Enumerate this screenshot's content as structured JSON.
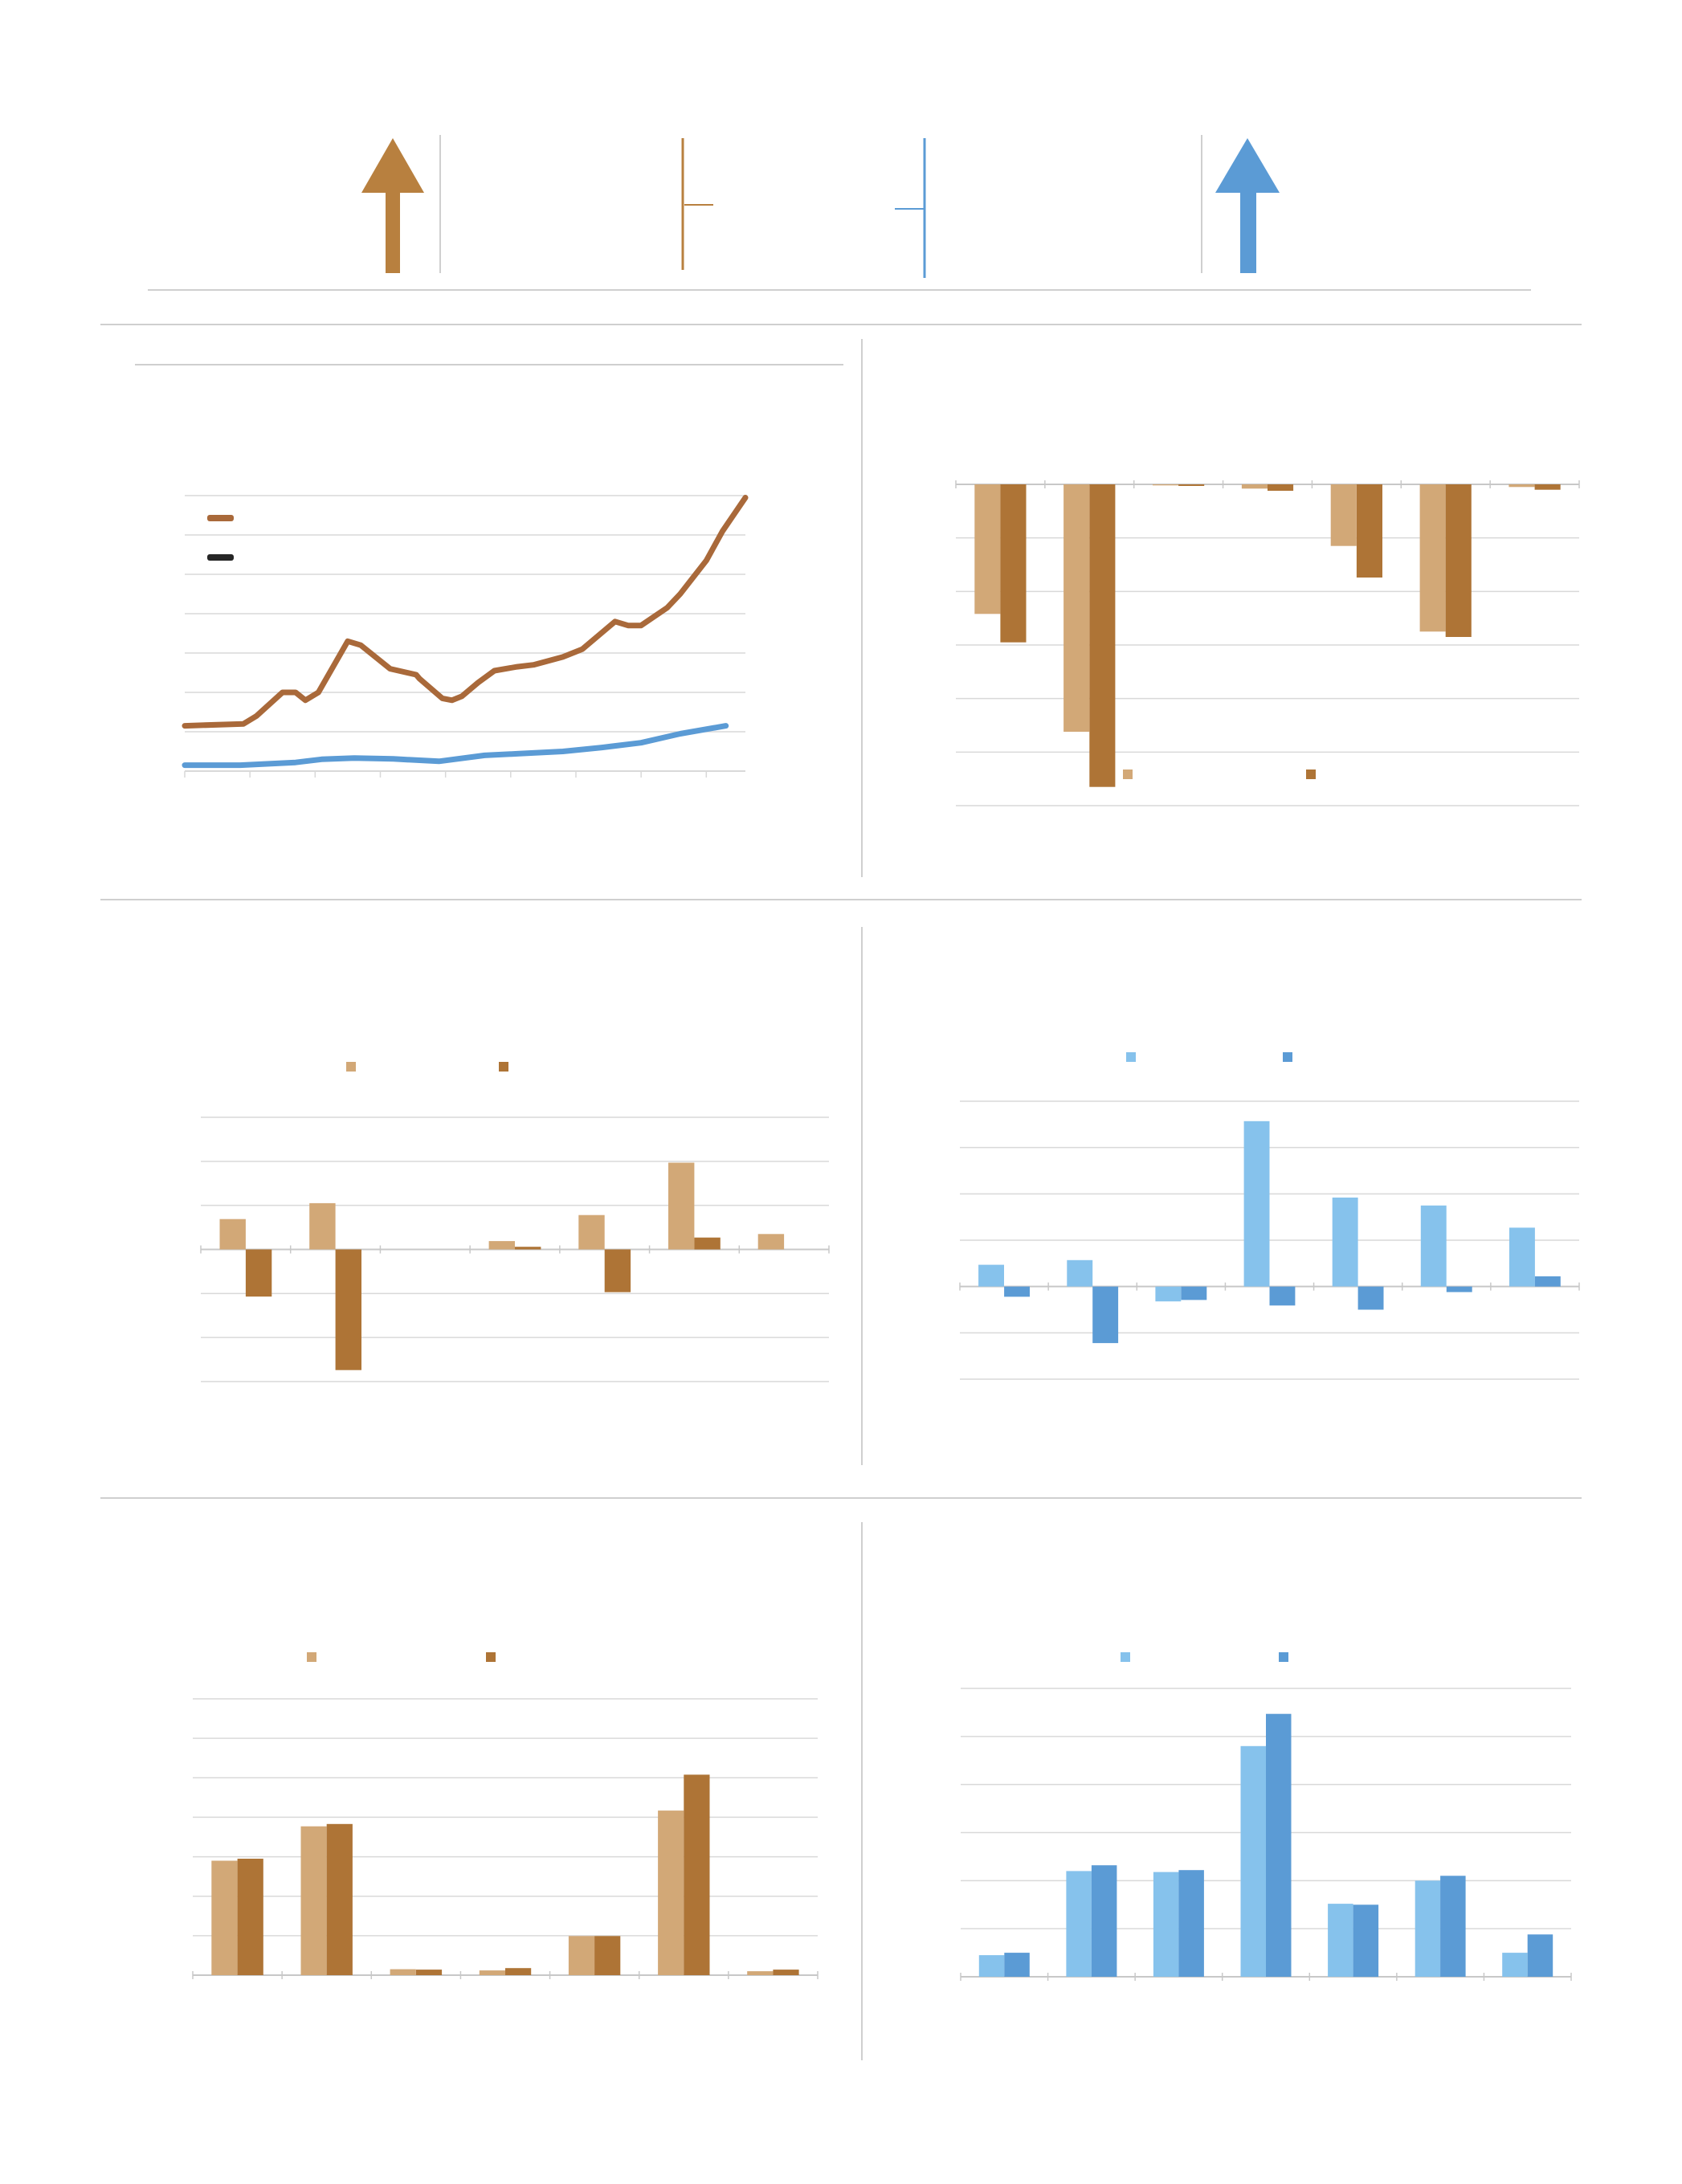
{
  "colors": {
    "tan_light": "#D2A877",
    "tan_dark": "#AE7436",
    "brown_line": "#A9693A",
    "arrow_brown": "#B8803F",
    "blue_light": "#86C2EC",
    "blue_dark": "#5B9BD5",
    "arrow_blue": "#5B9BD5",
    "dark_legend": "#262626",
    "grid": "#d9d9d9",
    "separator": "#cfcfcf"
  },
  "header": {
    "indicators": [
      {
        "type": "arrow",
        "direction": "up",
        "color": "arrow_brown"
      },
      {
        "type": "marker",
        "color": "arrow_brown"
      },
      {
        "type": "marker",
        "color": "arrow_blue"
      },
      {
        "type": "arrow",
        "direction": "up",
        "color": "arrow_blue"
      }
    ]
  },
  "chart_data": [
    {
      "id": "line-chart",
      "type": "line",
      "title": "",
      "xlabel": "",
      "ylabel": "",
      "x": [
        0,
        1,
        2,
        3,
        4,
        5,
        6,
        7,
        8
      ],
      "grid": true,
      "legend": {
        "position": "top-left",
        "entries": [
          {
            "color": "brown_line"
          },
          {
            "color": "dark_legend"
          }
        ]
      },
      "ylim": [
        0,
        7
      ],
      "series": [
        {
          "color": "brown_line",
          "points": [
            [
              0,
              1.15
            ],
            [
              0.9,
              1.2
            ],
            [
              1.1,
              1.4
            ],
            [
              1.5,
              2.0
            ],
            [
              1.7,
              2.0
            ],
            [
              1.85,
              1.8
            ],
            [
              2.05,
              2.0
            ],
            [
              2.5,
              3.3
            ],
            [
              2.7,
              3.2
            ],
            [
              3.15,
              2.6
            ],
            [
              3.55,
              2.45
            ],
            [
              3.6,
              2.35
            ],
            [
              3.95,
              1.85
            ],
            [
              4.1,
              1.8
            ],
            [
              4.25,
              1.9
            ],
            [
              4.5,
              2.25
            ],
            [
              4.75,
              2.55
            ],
            [
              5.1,
              2.65
            ],
            [
              5.35,
              2.7
            ],
            [
              5.8,
              2.9
            ],
            [
              6.1,
              3.1
            ],
            [
              6.6,
              3.8
            ],
            [
              6.8,
              3.7
            ],
            [
              7.0,
              3.7
            ],
            [
              7.4,
              4.15
            ],
            [
              7.6,
              4.5
            ],
            [
              8.0,
              5.35
            ],
            [
              8.25,
              6.1
            ],
            [
              8.6,
              6.95
            ]
          ]
        },
        {
          "color": "blue_dark",
          "points": [
            [
              0,
              0.15
            ],
            [
              0.85,
              0.15
            ],
            [
              1.7,
              0.22
            ],
            [
              2.1,
              0.3
            ],
            [
              2.6,
              0.33
            ],
            [
              3.2,
              0.31
            ],
            [
              3.9,
              0.25
            ],
            [
              4.6,
              0.4
            ],
            [
              5.1,
              0.44
            ],
            [
              5.8,
              0.5
            ],
            [
              6.4,
              0.6
            ],
            [
              7.0,
              0.72
            ],
            [
              7.6,
              0.95
            ],
            [
              8.3,
              1.15
            ]
          ]
        }
      ]
    },
    {
      "id": "bar-chart-top-right",
      "type": "bar",
      "title": "",
      "xlabel": "",
      "ylabel": "",
      "categories": [
        "",
        "",
        "",
        "",
        "",
        "",
        ""
      ],
      "ylim": [
        -6,
        0
      ],
      "grid": true,
      "legend": {
        "position": "bottom-center",
        "entries": [
          {
            "color": "tan_light"
          },
          {
            "color": "tan_dark"
          }
        ]
      },
      "series": [
        {
          "color": "tan_light",
          "values": [
            -2.42,
            -4.62,
            -0.02,
            -0.08,
            -1.15,
            -2.75,
            -0.05
          ]
        },
        {
          "color": "tan_dark",
          "values": [
            -2.95,
            -5.65,
            -0.03,
            -0.12,
            -1.74,
            -2.85,
            -0.1
          ]
        }
      ]
    },
    {
      "id": "bar-chart-middle-left",
      "type": "bar",
      "title": "",
      "xlabel": "",
      "ylabel": "",
      "categories": [
        "",
        "",
        "",
        "",
        "",
        "",
        ""
      ],
      "ylim": [
        -3,
        3
      ],
      "grid": true,
      "legend": {
        "position": "top-center",
        "entries": [
          {
            "color": "tan_light"
          },
          {
            "color": "tan_dark"
          }
        ]
      },
      "series": [
        {
          "color": "tan_light",
          "values": [
            0.69,
            1.05,
            0,
            0.19,
            0.78,
            1.97,
            0.35
          ]
        },
        {
          "color": "tan_dark",
          "values": [
            -1.07,
            -2.74,
            0,
            0.06,
            -0.97,
            0.27,
            0
          ]
        }
      ]
    },
    {
      "id": "bar-chart-middle-right",
      "type": "bar",
      "title": "",
      "xlabel": "",
      "ylabel": "",
      "categories": [
        "",
        "",
        "",
        "",
        "",
        "",
        ""
      ],
      "ylim": [
        -2,
        4
      ],
      "grid": true,
      "legend": {
        "position": "top-center",
        "entries": [
          {
            "color": "blue_light"
          },
          {
            "color": "blue_dark"
          }
        ]
      },
      "series": [
        {
          "color": "blue_light",
          "values": [
            0.47,
            0.57,
            -0.32,
            3.57,
            1.92,
            1.75,
            1.27
          ]
        },
        {
          "color": "blue_dark",
          "values": [
            -0.22,
            -1.22,
            -0.29,
            -0.41,
            -0.5,
            -0.12,
            0.22
          ]
        }
      ]
    },
    {
      "id": "bar-chart-bottom-left",
      "type": "bar",
      "title": "",
      "xlabel": "",
      "ylabel": "",
      "categories": [
        "",
        "",
        "",
        "",
        "",
        "",
        ""
      ],
      "ylim": [
        0,
        7
      ],
      "grid": true,
      "legend": {
        "position": "top-center",
        "entries": [
          {
            "color": "tan_light"
          },
          {
            "color": "tan_dark"
          }
        ]
      },
      "series": [
        {
          "color": "tan_light",
          "values": [
            2.9,
            3.77,
            0.15,
            0.12,
            0.99,
            4.17,
            0.1
          ]
        },
        {
          "color": "tan_dark",
          "values": [
            2.95,
            3.83,
            0.14,
            0.18,
            0.99,
            5.08,
            0.14
          ]
        }
      ]
    },
    {
      "id": "bar-chart-bottom-right",
      "type": "bar",
      "title": "",
      "xlabel": "",
      "ylabel": "",
      "categories": [
        "",
        "",
        "",
        "",
        "",
        "",
        ""
      ],
      "ylim": [
        0,
        6
      ],
      "grid": true,
      "legend": {
        "position": "top-center",
        "entries": [
          {
            "color": "blue_light"
          },
          {
            "color": "blue_dark"
          }
        ]
      },
      "series": [
        {
          "color": "blue_light",
          "values": [
            0.45,
            2.2,
            2.18,
            4.8,
            1.52,
            2.0,
            0.5
          ]
        },
        {
          "color": "blue_dark",
          "values": [
            0.5,
            2.32,
            2.22,
            5.47,
            1.5,
            2.1,
            0.88
          ]
        }
      ]
    }
  ]
}
